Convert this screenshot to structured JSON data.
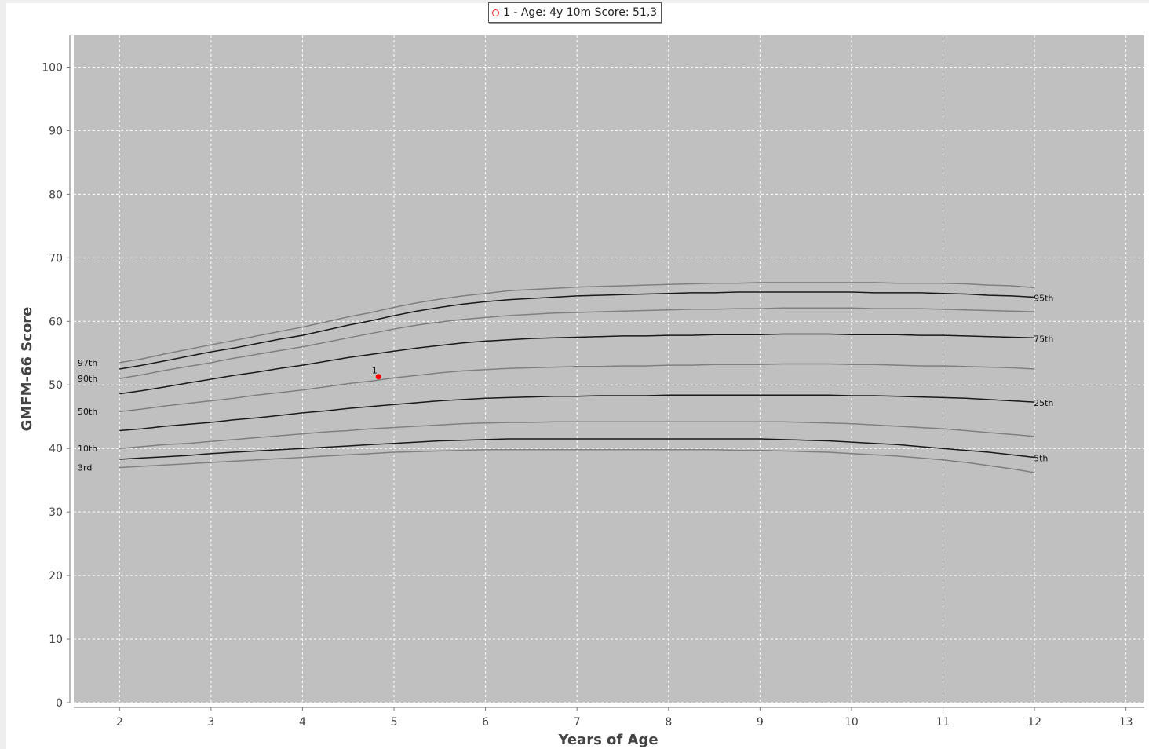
{
  "chart_data": {
    "type": "line",
    "title": "",
    "xlabel": "Years of Age",
    "ylabel": "GMFM-66 Score",
    "xlim": [
      1.5,
      13.2
    ],
    "ylim": [
      0,
      105
    ],
    "xticks": [
      2,
      3,
      4,
      5,
      6,
      7,
      8,
      9,
      10,
      11,
      12,
      13
    ],
    "yticks": [
      0,
      10,
      20,
      30,
      40,
      50,
      60,
      70,
      80,
      90,
      100
    ],
    "grid": true,
    "legend_position": "top-center",
    "legend": [
      {
        "label": "1 - Age: 4y 10m Score: 51,3"
      }
    ],
    "x": [
      2,
      2.25,
      2.5,
      2.75,
      3,
      3.25,
      3.5,
      3.75,
      4,
      4.25,
      4.5,
      4.75,
      5,
      5.25,
      5.5,
      5.75,
      6,
      6.25,
      6.5,
      6.75,
      7,
      7.25,
      7.5,
      7.75,
      8,
      8.25,
      8.5,
      8.75,
      9,
      9.25,
      9.5,
      9.75,
      10,
      10.25,
      10.5,
      10.75,
      11,
      11.25,
      11.5,
      11.75,
      12
    ],
    "series": [
      {
        "label_left": "97th",
        "label_right": "",
        "color": "#808080",
        "values": [
          53.5,
          54.1,
          54.9,
          55.6,
          56.3,
          57.0,
          57.7,
          58.4,
          59.1,
          59.9,
          60.7,
          61.4,
          62.2,
          62.9,
          63.5,
          64.0,
          64.4,
          64.8,
          65.0,
          65.2,
          65.4,
          65.5,
          65.6,
          65.7,
          65.8,
          65.9,
          66.0,
          66.0,
          66.1,
          66.1,
          66.1,
          66.1,
          66.1,
          66.1,
          66.0,
          66.0,
          66.0,
          65.9,
          65.7,
          65.6,
          65.3
        ]
      },
      {
        "label_left": "",
        "label_right": "95th",
        "color": "#1a1a1a",
        "values": [
          52.5,
          53.1,
          53.8,
          54.5,
          55.2,
          55.8,
          56.5,
          57.2,
          57.8,
          58.6,
          59.4,
          60.1,
          60.9,
          61.6,
          62.2,
          62.7,
          63.1,
          63.4,
          63.6,
          63.8,
          64.0,
          64.1,
          64.2,
          64.3,
          64.4,
          64.5,
          64.5,
          64.6,
          64.6,
          64.6,
          64.6,
          64.6,
          64.6,
          64.5,
          64.5,
          64.5,
          64.4,
          64.3,
          64.1,
          64.0,
          63.8
        ]
      },
      {
        "label_left": "90th",
        "label_right": "",
        "color": "#808080",
        "values": [
          51.0,
          51.6,
          52.3,
          52.9,
          53.5,
          54.2,
          54.8,
          55.4,
          56.0,
          56.7,
          57.4,
          58.1,
          58.8,
          59.4,
          59.9,
          60.3,
          60.6,
          60.9,
          61.1,
          61.3,
          61.4,
          61.5,
          61.6,
          61.7,
          61.8,
          61.9,
          61.9,
          62.0,
          62.0,
          62.1,
          62.1,
          62.1,
          62.1,
          62.0,
          62.0,
          62.0,
          61.9,
          61.8,
          61.7,
          61.6,
          61.5
        ]
      },
      {
        "label_left": "",
        "label_right": "75th",
        "color": "#1a1a1a",
        "values": [
          48.6,
          49.1,
          49.7,
          50.3,
          50.9,
          51.5,
          52.0,
          52.6,
          53.1,
          53.7,
          54.3,
          54.8,
          55.3,
          55.8,
          56.2,
          56.6,
          56.9,
          57.1,
          57.3,
          57.4,
          57.5,
          57.6,
          57.7,
          57.7,
          57.8,
          57.8,
          57.9,
          57.9,
          57.9,
          58.0,
          58.0,
          58.0,
          57.9,
          57.9,
          57.9,
          57.8,
          57.8,
          57.7,
          57.6,
          57.5,
          57.4
        ]
      },
      {
        "label_left": "50th",
        "label_right": "",
        "color": "#808080",
        "values": [
          45.8,
          46.2,
          46.7,
          47.1,
          47.5,
          47.9,
          48.4,
          48.8,
          49.2,
          49.7,
          50.2,
          50.6,
          51.1,
          51.5,
          51.9,
          52.2,
          52.4,
          52.6,
          52.7,
          52.8,
          52.9,
          52.9,
          53.0,
          53.0,
          53.1,
          53.1,
          53.2,
          53.2,
          53.2,
          53.3,
          53.3,
          53.3,
          53.2,
          53.2,
          53.1,
          53.0,
          53.0,
          52.9,
          52.8,
          52.7,
          52.5
        ]
      },
      {
        "label_left": "",
        "label_right": "25th",
        "color": "#1a1a1a",
        "values": [
          42.8,
          43.1,
          43.5,
          43.8,
          44.1,
          44.5,
          44.8,
          45.2,
          45.6,
          45.9,
          46.3,
          46.6,
          46.9,
          47.2,
          47.5,
          47.7,
          47.9,
          48.0,
          48.1,
          48.2,
          48.2,
          48.3,
          48.3,
          48.3,
          48.4,
          48.4,
          48.4,
          48.4,
          48.4,
          48.4,
          48.4,
          48.4,
          48.3,
          48.3,
          48.2,
          48.1,
          48.0,
          47.9,
          47.7,
          47.5,
          47.3
        ]
      },
      {
        "label_left": "10th",
        "label_right": "",
        "color": "#808080",
        "values": [
          40.0,
          40.3,
          40.6,
          40.8,
          41.1,
          41.4,
          41.7,
          42.0,
          42.3,
          42.6,
          42.8,
          43.1,
          43.3,
          43.5,
          43.7,
          43.9,
          44.0,
          44.1,
          44.1,
          44.2,
          44.2,
          44.2,
          44.2,
          44.2,
          44.2,
          44.2,
          44.2,
          44.2,
          44.2,
          44.2,
          44.1,
          44.0,
          43.9,
          43.7,
          43.5,
          43.3,
          43.1,
          42.8,
          42.5,
          42.2,
          41.9
        ]
      },
      {
        "label_left": "",
        "label_right": "5th",
        "color": "#1a1a1a",
        "values": [
          38.3,
          38.5,
          38.7,
          38.9,
          39.2,
          39.4,
          39.6,
          39.8,
          40.0,
          40.2,
          40.4,
          40.6,
          40.8,
          41.0,
          41.2,
          41.3,
          41.4,
          41.5,
          41.5,
          41.5,
          41.5,
          41.5,
          41.5,
          41.5,
          41.5,
          41.5,
          41.5,
          41.5,
          41.5,
          41.4,
          41.3,
          41.2,
          41.0,
          40.8,
          40.6,
          40.3,
          40.0,
          39.7,
          39.4,
          39.0,
          38.6
        ]
      },
      {
        "label_left": "3rd",
        "label_right": "",
        "color": "#808080",
        "values": [
          37.0,
          37.2,
          37.4,
          37.6,
          37.8,
          38.0,
          38.2,
          38.4,
          38.6,
          38.8,
          39.0,
          39.2,
          39.4,
          39.5,
          39.6,
          39.7,
          39.8,
          39.8,
          39.8,
          39.8,
          39.8,
          39.8,
          39.8,
          39.8,
          39.8,
          39.8,
          39.8,
          39.7,
          39.7,
          39.6,
          39.5,
          39.4,
          39.2,
          39.0,
          38.8,
          38.5,
          38.2,
          37.8,
          37.3,
          36.8,
          36.2
        ]
      }
    ],
    "points": [
      {
        "x": 4.83,
        "y": 51.3,
        "label": "1",
        "color": "#ff0000"
      }
    ],
    "plot_background": "#c0c0c0",
    "grid_color": "#ffffff"
  }
}
